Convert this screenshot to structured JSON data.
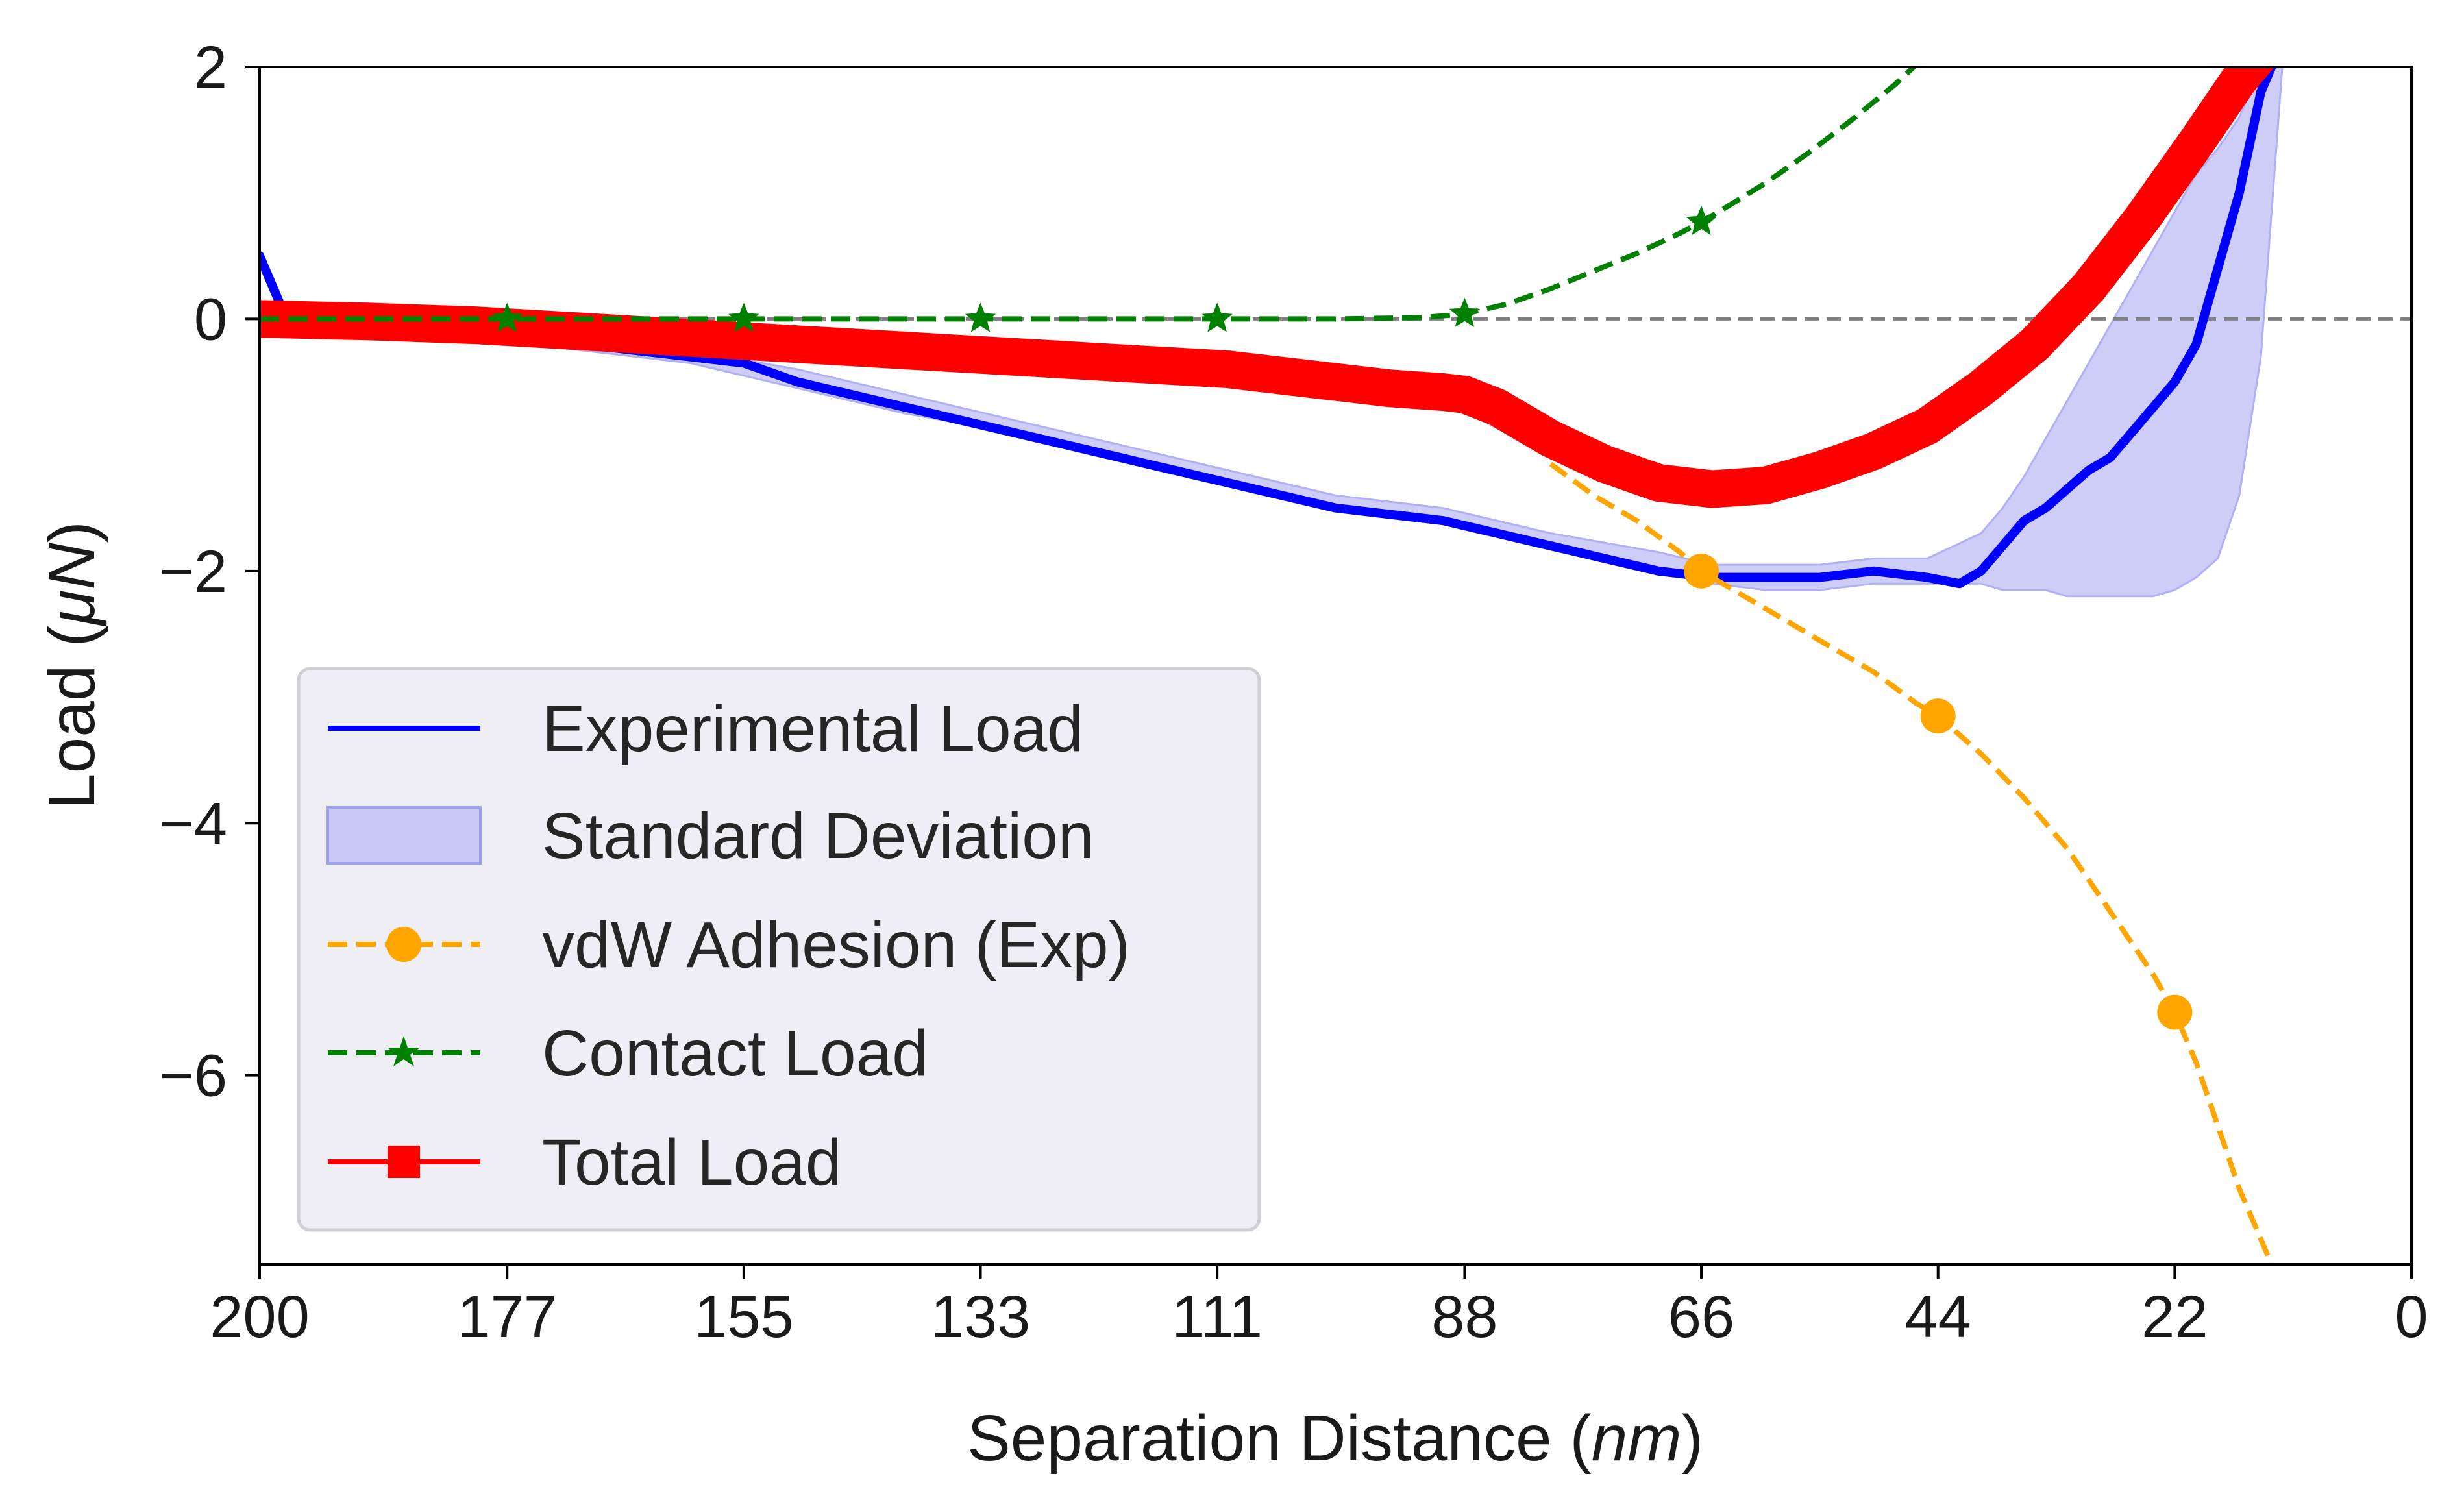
{
  "chart_data": {
    "type": "line",
    "xlabel": {
      "text": "Separation Distance (",
      "unit": "nm",
      "close": ")"
    },
    "ylabel": {
      "text": "Load (",
      "unit": "μN",
      "close": ")"
    },
    "xlim": [
      200,
      0
    ],
    "ylim": [
      -7.5,
      2
    ],
    "x_ticks": [
      200,
      177,
      155,
      133,
      111,
      88,
      66,
      44,
      22,
      0
    ],
    "x_tick_labels": [
      "200",
      "177",
      "155",
      "133",
      "111",
      "88",
      "66",
      "44",
      "22",
      "0"
    ],
    "y_ticks": [
      2,
      0,
      -2,
      -4,
      -6
    ],
    "y_tick_labels": [
      "2",
      "0",
      "−2",
      "−4",
      "−6"
    ],
    "reference_line": {
      "y": 0,
      "color": "#808080",
      "style": "dashed"
    },
    "legend": {
      "position": "lower left",
      "entries": [
        "Experimental Load",
        "Standard Deviation",
        "vdW Adhesion (Exp)",
        "Contact Load",
        "Total Load"
      ]
    },
    "colors": {
      "experimental": "#0000ff",
      "std_fill": "#c8c8f8",
      "vdw": "#ffa500",
      "contact": "#008000",
      "total": "#ff0000",
      "legend_bg": "#eeeef4"
    },
    "series": [
      {
        "name": "Experimental Load",
        "style": "solid",
        "x": [
          200,
          198,
          195,
          190,
          185,
          180,
          175,
          170,
          165,
          160,
          155,
          150,
          145,
          140,
          135,
          130,
          125,
          120,
          115,
          110,
          105,
          100,
          95,
          90,
          85,
          80,
          75,
          70,
          65,
          60,
          55,
          50,
          45,
          42,
          40,
          38,
          36,
          34,
          32,
          30,
          28,
          26,
          24,
          22,
          20,
          19,
          18,
          17,
          16,
          15,
          14,
          13
        ],
        "y": [
          0.5,
          0.1,
          0.0,
          -0.05,
          -0.05,
          -0.1,
          -0.15,
          -0.2,
          -0.25,
          -0.3,
          -0.35,
          -0.5,
          -0.6,
          -0.7,
          -0.8,
          -0.9,
          -1.0,
          -1.1,
          -1.2,
          -1.3,
          -1.4,
          -1.5,
          -1.55,
          -1.6,
          -1.7,
          -1.8,
          -1.9,
          -2.0,
          -2.05,
          -2.05,
          -2.05,
          -2.0,
          -2.05,
          -2.1,
          -2.0,
          -1.8,
          -1.6,
          -1.5,
          -1.35,
          -1.2,
          -1.1,
          -0.9,
          -0.7,
          -0.5,
          -0.2,
          0.1,
          0.4,
          0.7,
          1.0,
          1.4,
          1.8,
          2.0
        ]
      },
      {
        "name": "Standard Deviation",
        "style": "band",
        "x": [
          200,
          190,
          180,
          170,
          160,
          150,
          140,
          130,
          120,
          110,
          100,
          90,
          80,
          70,
          65,
          60,
          55,
          50,
          45,
          40,
          38,
          36,
          34,
          32,
          30,
          28,
          26,
          24,
          22,
          20,
          18,
          16,
          14,
          12
        ],
        "upper": [
          0.1,
          0.0,
          -0.05,
          -0.15,
          -0.25,
          -0.4,
          -0.6,
          -0.8,
          -1.0,
          -1.2,
          -1.4,
          -1.5,
          -1.7,
          -1.85,
          -1.95,
          -1.95,
          -1.95,
          -1.9,
          -1.9,
          -1.7,
          -1.5,
          -1.25,
          -0.95,
          -0.65,
          -0.35,
          -0.05,
          0.25,
          0.55,
          0.85,
          1.15,
          1.35,
          1.6,
          2.0,
          2.0
        ],
        "lower": [
          0.0,
          -0.1,
          -0.15,
          -0.25,
          -0.35,
          -0.55,
          -0.75,
          -0.9,
          -1.1,
          -1.3,
          -1.5,
          -1.6,
          -1.8,
          -2.0,
          -2.1,
          -2.15,
          -2.15,
          -2.1,
          -2.1,
          -2.1,
          -2.15,
          -2.15,
          -2.15,
          -2.2,
          -2.2,
          -2.2,
          -2.2,
          -2.2,
          -2.15,
          -2.05,
          -1.9,
          -1.4,
          -0.3,
          2.0
        ]
      },
      {
        "name": "vdW Adhesion (Exp)",
        "style": "dashed",
        "x": [
          80,
          76,
          72,
          68,
          66,
          62,
          58,
          54,
          50,
          46,
          44,
          40,
          36,
          32,
          28,
          24,
          22,
          20,
          18,
          16,
          14,
          13
        ],
        "y": [
          -1.15,
          -1.4,
          -1.6,
          -1.85,
          -2.0,
          -2.2,
          -2.4,
          -2.6,
          -2.8,
          -3.05,
          -3.15,
          -3.45,
          -3.8,
          -4.2,
          -4.7,
          -5.2,
          -5.5,
          -5.9,
          -6.4,
          -6.9,
          -7.3,
          -7.5
        ],
        "marker_x": [
          66,
          44,
          22
        ],
        "marker_y": [
          -2.0,
          -3.15,
          -5.5
        ]
      },
      {
        "name": "Contact Load",
        "style": "dashed",
        "x": [
          200,
          180,
          160,
          140,
          120,
          100,
          92,
          88,
          84,
          80,
          76,
          72,
          68,
          66,
          64,
          60,
          56,
          52,
          48,
          46,
          45
        ],
        "y": [
          0,
          0,
          0,
          0,
          0,
          0,
          0.01,
          0.04,
          0.12,
          0.24,
          0.38,
          0.52,
          0.68,
          0.77,
          0.87,
          1.08,
          1.32,
          1.58,
          1.86,
          2.02,
          2.1
        ],
        "marker_x": [
          177,
          155,
          133,
          111,
          88,
          66
        ],
        "marker_y": [
          0,
          0,
          0,
          0,
          0.04,
          0.77
        ]
      },
      {
        "name": "Total Load",
        "style": "solid",
        "x": [
          200,
          190,
          180,
          170,
          160,
          150,
          140,
          130,
          120,
          110,
          100,
          95,
          90,
          88,
          85,
          80,
          75,
          70,
          65,
          60,
          55,
          50,
          45,
          40,
          35,
          30,
          25,
          20,
          16,
          13
        ],
        "y": [
          0.0,
          -0.02,
          -0.05,
          -0.1,
          -0.15,
          -0.2,
          -0.25,
          -0.3,
          -0.35,
          -0.4,
          -0.5,
          -0.55,
          -0.58,
          -0.6,
          -0.7,
          -0.95,
          -1.15,
          -1.3,
          -1.35,
          -1.32,
          -1.2,
          -1.05,
          -0.85,
          -0.55,
          -0.2,
          0.25,
          0.8,
          1.4,
          1.9,
          2.2
        ]
      }
    ]
  }
}
